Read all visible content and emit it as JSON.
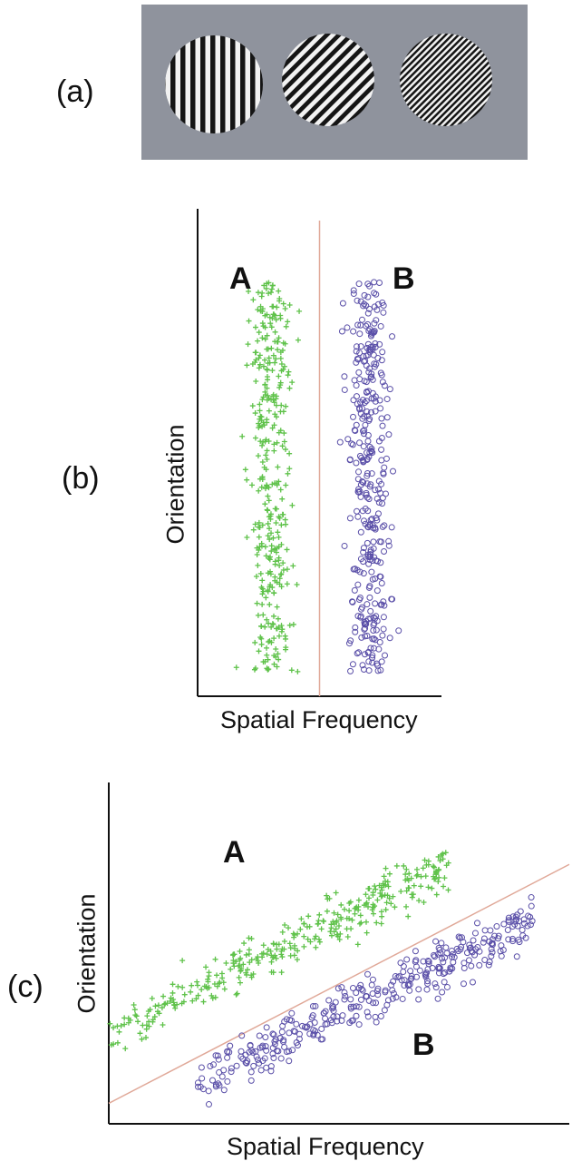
{
  "figure": {
    "panel_labels": [
      "(a)",
      "(b)",
      "(c)"
    ],
    "gratings": {
      "background_color": "#8f939d",
      "stimuli": [
        {
          "orientation_deg": 0,
          "frequency_level": "low"
        },
        {
          "orientation_deg": 45,
          "frequency_level": "medium"
        },
        {
          "orientation_deg": 45,
          "frequency_level": "high"
        }
      ]
    },
    "colors": {
      "class_A": "#5fc24a",
      "class_B": "#5a4fa8",
      "boundary": "#e0a898",
      "axis": "#111111"
    }
  },
  "chart_data": [
    {
      "type": "scatter",
      "panel": "(b)",
      "xlabel": "Spatial Frequency",
      "ylabel": "Orientation",
      "ticks": "none",
      "grid": false,
      "xlim": [
        0,
        10
      ],
      "ylim": [
        0,
        10
      ],
      "decision_boundary": {
        "orientation": "vertical",
        "x": 5
      },
      "series": [
        {
          "name": "A",
          "marker": "plus",
          "color": "#5fc24a",
          "x_center": 3.0,
          "x_spread": 0.9,
          "y_range": [
            0.5,
            8.5
          ],
          "count": 350
        },
        {
          "name": "B",
          "marker": "open-circle",
          "color": "#5a4fa8",
          "x_center": 7.0,
          "x_spread": 0.9,
          "y_range": [
            0.5,
            8.5
          ],
          "count": 350
        }
      ]
    },
    {
      "type": "scatter",
      "panel": "(c)",
      "xlabel": "Spatial Frequency",
      "ylabel": "Orientation",
      "ticks": "none",
      "grid": false,
      "xlim": [
        0,
        10
      ],
      "ylim": [
        0,
        10
      ],
      "decision_boundary": {
        "orientation": "diagonal",
        "points": [
          [
            0,
            0.6
          ],
          [
            10,
            7.6
          ]
        ]
      },
      "series": [
        {
          "name": "A",
          "marker": "plus",
          "color": "#5fc24a",
          "x_range": [
            0,
            7.4
          ],
          "trend": [
            [
              0,
              2.6
            ],
            [
              7.4,
              7.6
            ]
          ],
          "count": 350
        },
        {
          "name": "B",
          "marker": "open-circle",
          "color": "#5a4fa8",
          "x_range": [
            1.9,
            9.2
          ],
          "trend": [
            [
              1.9,
              1.2
            ],
            [
              9.2,
              5.9
            ]
          ],
          "count": 350
        }
      ]
    }
  ]
}
